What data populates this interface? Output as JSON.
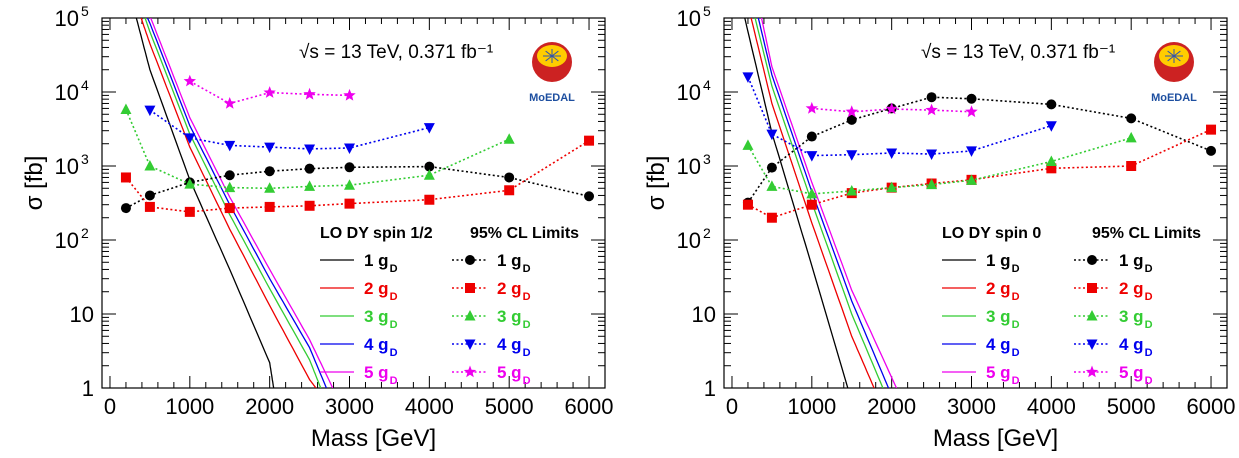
{
  "figure_title": "",
  "logo_text": "MoEDAL",
  "colors": {
    "1": "#000000",
    "2": "#ee0000",
    "3": "#33cc33",
    "4": "#0000ee",
    "5": "#ee00ee",
    "logo_text": "#1e4fa0"
  },
  "chart_data": [
    {
      "type": "line",
      "title": "",
      "annotation": "√s = 13 TeV, 0.371 fb⁻¹",
      "xlabel": "Mass [GeV]",
      "ylabel": "σ [fb]",
      "xlim": [
        -100,
        6200
      ],
      "ylim": [
        1,
        100000
      ],
      "yscale": "log",
      "xticks": [
        0,
        1000,
        2000,
        3000,
        4000,
        5000,
        6000
      ],
      "yticks": [
        {
          "v": 1,
          "label": "1"
        },
        {
          "v": 10,
          "label": "10"
        },
        {
          "v": 100,
          "label": "10",
          "exp": "2"
        },
        {
          "v": 1000,
          "label": "10",
          "exp": "3"
        },
        {
          "v": 10000,
          "label": "10",
          "exp": "4"
        },
        {
          "v": 100000,
          "label": "10",
          "exp": "5"
        }
      ],
      "legend_headers": [
        "LO DY spin 1/2",
        "95% CL Limits"
      ],
      "legend_placement": "lower-right",
      "theory_curves": [
        {
          "name": "1 g",
          "sub": "D",
          "key": "1",
          "x": [
            330,
            500,
            1000,
            1500,
            2000,
            2050
          ],
          "y": [
            100000,
            20000,
            650,
            40,
            2.2,
            1
          ]
        },
        {
          "name": "2 g",
          "sub": "D",
          "key": "2",
          "x": [
            390,
            500,
            1000,
            1500,
            2000,
            2500,
            2580
          ],
          "y": [
            100000,
            45000,
            1800,
            140,
            13,
            1.3,
            1
          ]
        },
        {
          "name": "3 g",
          "sub": "D",
          "key": "3",
          "x": [
            440,
            500,
            1000,
            1500,
            2000,
            2500,
            2640
          ],
          "y": [
            100000,
            65000,
            2700,
            220,
            22,
            2.4,
            1
          ]
        },
        {
          "name": "4 g",
          "sub": "D",
          "key": "4",
          "x": [
            470,
            500,
            1000,
            1500,
            2000,
            2500,
            2710
          ],
          "y": [
            100000,
            85000,
            3500,
            300,
            30,
            3.5,
            1
          ]
        },
        {
          "name": "5 g",
          "sub": "D",
          "key": "5",
          "x": [
            510,
            1000,
            1500,
            2000,
            2500,
            2790
          ],
          "y": [
            100000,
            4500,
            380,
            40,
            4.5,
            1
          ]
        }
      ],
      "limits": [
        {
          "name": "1 g",
          "sub": "D",
          "key": "1",
          "marker": "circle",
          "x": [
            200,
            500,
            1000,
            1500,
            2000,
            2500,
            3000,
            4000,
            5000,
            6000
          ],
          "y": [
            270,
            400,
            600,
            750,
            850,
            920,
            960,
            980,
            700,
            390
          ]
        },
        {
          "name": "2 g",
          "sub": "D",
          "key": "2",
          "marker": "square",
          "x": [
            200,
            500,
            1000,
            1500,
            2000,
            2500,
            3000,
            4000,
            5000,
            6000
          ],
          "y": [
            700,
            280,
            240,
            270,
            280,
            290,
            310,
            350,
            470,
            2200
          ]
        },
        {
          "name": "3 g",
          "sub": "D",
          "key": "3",
          "marker": "triup",
          "x": [
            200,
            500,
            1000,
            1500,
            2000,
            2500,
            3000,
            4000,
            5000
          ],
          "y": [
            5800,
            1000,
            570,
            510,
            500,
            530,
            550,
            750,
            2300
          ]
        },
        {
          "name": "4 g",
          "sub": "D",
          "key": "4",
          "marker": "tridown",
          "x": [
            500,
            1000,
            1500,
            2000,
            2500,
            3000,
            4000
          ],
          "y": [
            5700,
            2400,
            1900,
            1800,
            1700,
            1750,
            3300
          ]
        },
        {
          "name": "5 g",
          "sub": "D",
          "key": "5",
          "marker": "star",
          "x": [
            1000,
            1500,
            2000,
            2500,
            3000
          ],
          "y": [
            14000,
            7000,
            9800,
            9300,
            9000
          ]
        }
      ]
    },
    {
      "type": "line",
      "title": "",
      "annotation": "√s = 13 TeV, 0.371 fb⁻¹",
      "xlabel": "Mass [GeV]",
      "ylabel": "σ [fb]",
      "xlim": [
        -100,
        6200
      ],
      "ylim": [
        1,
        100000
      ],
      "yscale": "log",
      "xticks": [
        0,
        1000,
        2000,
        3000,
        4000,
        5000,
        6000
      ],
      "yticks": [
        {
          "v": 1,
          "label": "1"
        },
        {
          "v": 10,
          "label": "10"
        },
        {
          "v": 100,
          "label": "10",
          "exp": "2"
        },
        {
          "v": 1000,
          "label": "10",
          "exp": "3"
        },
        {
          "v": 10000,
          "label": "10",
          "exp": "4"
        },
        {
          "v": 100000,
          "label": "10",
          "exp": "5"
        }
      ],
      "legend_headers": [
        "LO DY spin 0",
        "95% CL Limits"
      ],
      "legend_placement": "lower-right",
      "theory_curves": [
        {
          "name": "1 g",
          "sub": "D",
          "key": "1",
          "x": [
            160,
            500,
            1000,
            1450
          ],
          "y": [
            100000,
            2800,
            45,
            1
          ]
        },
        {
          "name": "2 g",
          "sub": "D",
          "key": "2",
          "x": [
            240,
            500,
            1000,
            1500,
            1780
          ],
          "y": [
            100000,
            7000,
            170,
            5,
            1
          ]
        },
        {
          "name": "3 g",
          "sub": "D",
          "key": "3",
          "x": [
            290,
            500,
            1000,
            1500,
            1890
          ],
          "y": [
            100000,
            12000,
            320,
            10,
            1
          ]
        },
        {
          "name": "4 g",
          "sub": "D",
          "key": "4",
          "x": [
            330,
            500,
            1000,
            1500,
            1960
          ],
          "y": [
            100000,
            17000,
            450,
            15,
            1
          ]
        },
        {
          "name": "5 g",
          "sub": "D",
          "key": "5",
          "x": [
            370,
            500,
            1000,
            1500,
            2060
          ],
          "y": [
            100000,
            22000,
            600,
            21,
            1
          ]
        }
      ],
      "limits": [
        {
          "name": "1 g",
          "sub": "D",
          "key": "1",
          "marker": "circle",
          "x": [
            200,
            500,
            1000,
            1500,
            2000,
            2500,
            3000,
            4000,
            5000,
            6000
          ],
          "y": [
            320,
            950,
            2500,
            4200,
            6000,
            8500,
            8100,
            6800,
            4400,
            1600
          ]
        },
        {
          "name": "2 g",
          "sub": "D",
          "key": "2",
          "marker": "square",
          "x": [
            200,
            500,
            1000,
            1500,
            2000,
            2500,
            3000,
            4000,
            5000,
            6000
          ],
          "y": [
            300,
            200,
            300,
            430,
            510,
            580,
            650,
            930,
            1000,
            3100
          ]
        },
        {
          "name": "3 g",
          "sub": "D",
          "key": "3",
          "marker": "triup",
          "x": [
            200,
            500,
            1000,
            1500,
            2000,
            2500,
            3000,
            4000,
            5000
          ],
          "y": [
            1900,
            530,
            420,
            460,
            510,
            560,
            640,
            1150,
            2400
          ]
        },
        {
          "name": "4 g",
          "sub": "D",
          "key": "4",
          "marker": "tridown",
          "x": [
            200,
            500,
            1000,
            1500,
            2000,
            2500,
            3000,
            4000
          ],
          "y": [
            16000,
            2700,
            1380,
            1420,
            1500,
            1450,
            1600,
            3500
          ]
        },
        {
          "name": "5 g",
          "sub": "D",
          "key": "5",
          "marker": "star",
          "x": [
            1000,
            1500,
            2000,
            2500,
            3000
          ],
          "y": [
            6000,
            5400,
            5900,
            5700,
            5400
          ]
        }
      ]
    }
  ]
}
